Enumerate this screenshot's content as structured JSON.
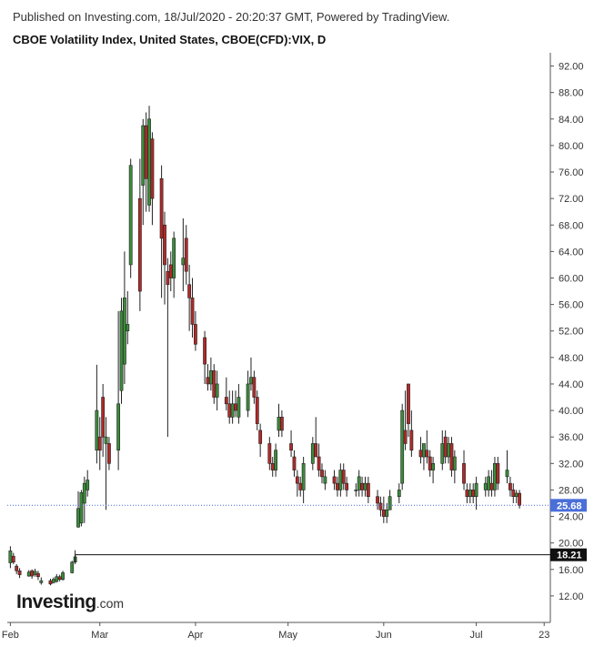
{
  "header": {
    "published": "Published on Investing.com, 18/Jul/2020 - 20:20:37 GMT, Powered by TradingView.",
    "title": "CBOE Volatility Index, United States, CBOE(CFD):VIX, D"
  },
  "logo": {
    "brand": "Investing",
    "domain": ".com"
  },
  "colors": {
    "up": "#3c8a3c",
    "down": "#b02a2a",
    "price_tag": "#4a6fd8",
    "black_tag": "#111111",
    "price_line": "#4a6fd8"
  },
  "chart_data": {
    "type": "candlestick",
    "y_ticks": [
      "92.00",
      "88.00",
      "84.00",
      "80.00",
      "76.00",
      "72.00",
      "68.00",
      "64.00",
      "60.00",
      "56.00",
      "52.00",
      "48.00",
      "44.00",
      "40.00",
      "36.00",
      "32.00",
      "28.00",
      "24.00",
      "20.00",
      "16.00",
      "12.00"
    ],
    "ylim": [
      8,
      94
    ],
    "x_labels": [
      {
        "label": "Feb",
        "day": 0
      },
      {
        "label": "Mar",
        "day": 29
      },
      {
        "label": "Apr",
        "day": 60
      },
      {
        "label": "May",
        "day": 90
      },
      {
        "label": "Jun",
        "day": 121
      },
      {
        "label": "Jul",
        "day": 151
      },
      {
        "label": "23",
        "day": 173
      }
    ],
    "current_price": {
      "label": "25.68",
      "value": 25.68
    },
    "marker_line": {
      "label": "18.21",
      "value": 18.21,
      "start_day": 21
    },
    "candles": [
      {
        "d": 0,
        "o": 17.0,
        "h": 19.5,
        "l": 16.2,
        "c": 18.8
      },
      {
        "d": 1,
        "o": 18.0,
        "h": 18.5,
        "l": 16.8,
        "c": 17.1
      },
      {
        "d": 2,
        "o": 16.5,
        "h": 16.8,
        "l": 15.3,
        "c": 15.8
      },
      {
        "d": 3,
        "o": 15.8,
        "h": 16.2,
        "l": 14.7,
        "c": 15.2
      },
      {
        "d": 6,
        "o": 15.0,
        "h": 15.9,
        "l": 14.9,
        "c": 15.6
      },
      {
        "d": 7,
        "o": 15.8,
        "h": 16.0,
        "l": 14.6,
        "c": 15.0
      },
      {
        "d": 8,
        "o": 15.2,
        "h": 16.1,
        "l": 14.9,
        "c": 15.7
      },
      {
        "d": 9,
        "o": 15.4,
        "h": 15.8,
        "l": 14.4,
        "c": 14.9
      },
      {
        "d": 10,
        "o": 14.0,
        "h": 14.8,
        "l": 13.7,
        "c": 14.3
      },
      {
        "d": 13,
        "o": 14.3,
        "h": 14.6,
        "l": 13.6,
        "c": 13.8
      },
      {
        "d": 14,
        "o": 14.0,
        "h": 14.8,
        "l": 13.9,
        "c": 14.5
      },
      {
        "d": 15,
        "o": 14.2,
        "h": 15.3,
        "l": 14.0,
        "c": 14.9
      },
      {
        "d": 16,
        "o": 14.9,
        "h": 15.2,
        "l": 14.2,
        "c": 14.5
      },
      {
        "d": 17,
        "o": 14.5,
        "h": 15.8,
        "l": 14.3,
        "c": 15.5
      },
      {
        "d": 20,
        "o": 15.5,
        "h": 17.3,
        "l": 15.4,
        "c": 17.1
      },
      {
        "d": 21,
        "o": 17.1,
        "h": 18.9,
        "l": 16.8,
        "c": 17.9
      },
      {
        "d": 22,
        "o": 22.4,
        "h": 27.8,
        "l": 22.3,
        "c": 25.2
      },
      {
        "d": 23,
        "o": 23.0,
        "h": 28.0,
        "l": 22.5,
        "c": 27.6
      },
      {
        "d": 24,
        "o": 26.0,
        "h": 30.0,
        "l": 23.0,
        "c": 29.0
      },
      {
        "d": 25,
        "o": 28.0,
        "h": 31.0,
        "l": 27.0,
        "c": 29.5
      },
      {
        "d": 28,
        "o": 34.0,
        "h": 46.9,
        "l": 32.0,
        "c": 40.0
      },
      {
        "d": 29,
        "o": 36.0,
        "h": 39.0,
        "l": 31.0,
        "c": 34.0
      },
      {
        "d": 30,
        "o": 42.0,
        "h": 44.0,
        "l": 33.0,
        "c": 36.0
      },
      {
        "d": 31,
        "o": 35.0,
        "h": 39.0,
        "l": 25.0,
        "c": 36.0
      },
      {
        "d": 32,
        "o": 35.0,
        "h": 36.0,
        "l": 31.0,
        "c": 32.0
      },
      {
        "d": 35,
        "o": 34.0,
        "h": 55.0,
        "l": 31.0,
        "c": 41.0
      },
      {
        "d": 36,
        "o": 43.0,
        "h": 57.0,
        "l": 41.0,
        "c": 55.0
      },
      {
        "d": 37,
        "o": 47.0,
        "h": 64.0,
        "l": 44.0,
        "c": 57.0
      },
      {
        "d": 38,
        "o": 52.0,
        "h": 58.0,
        "l": 50.0,
        "c": 53.0
      },
      {
        "d": 39,
        "o": 62.0,
        "h": 78.0,
        "l": 60.0,
        "c": 77.0
      },
      {
        "d": 42,
        "o": 72.0,
        "h": 78.0,
        "l": 55.0,
        "c": 58.0
      },
      {
        "d": 43,
        "o": 74.0,
        "h": 84.0,
        "l": 68.0,
        "c": 83.0
      },
      {
        "d": 44,
        "o": 83.0,
        "h": 85.0,
        "l": 70.0,
        "c": 75.0
      },
      {
        "d": 45,
        "o": 71.0,
        "h": 86.0,
        "l": 70.0,
        "c": 84.0
      },
      {
        "d": 46,
        "o": 81.0,
        "h": 82.0,
        "l": 68.0,
        "c": 72.0
      },
      {
        "d": 49,
        "o": 75.0,
        "h": 77.0,
        "l": 57.0,
        "c": 66.0
      },
      {
        "d": 50,
        "o": 68.0,
        "h": 70.0,
        "l": 56.0,
        "c": 62.0
      },
      {
        "d": 51,
        "o": 61.0,
        "h": 63.0,
        "l": 36.0,
        "c": 59.0
      },
      {
        "d": 52,
        "o": 62.0,
        "h": 64.0,
        "l": 58.0,
        "c": 60.0
      },
      {
        "d": 53,
        "o": 60.0,
        "h": 67.0,
        "l": 57.0,
        "c": 66.0
      },
      {
        "d": 56,
        "o": 62.0,
        "h": 69.0,
        "l": 58.0,
        "c": 63.0
      },
      {
        "d": 57,
        "o": 66.0,
        "h": 68.0,
        "l": 59.0,
        "c": 61.0
      },
      {
        "d": 58,
        "o": 59.0,
        "h": 62.0,
        "l": 52.0,
        "c": 57.0
      },
      {
        "d": 59,
        "o": 57.0,
        "h": 60.0,
        "l": 51.0,
        "c": 53.0
      },
      {
        "d": 60,
        "o": 53.0,
        "h": 55.0,
        "l": 49.0,
        "c": 50.0
      },
      {
        "d": 63,
        "o": 51.0,
        "h": 52.0,
        "l": 44.0,
        "c": 47.0
      },
      {
        "d": 64,
        "o": 45.0,
        "h": 47.0,
        "l": 43.0,
        "c": 44.0
      },
      {
        "d": 65,
        "o": 44.0,
        "h": 48.0,
        "l": 43.0,
        "c": 46.0
      },
      {
        "d": 66,
        "o": 46.0,
        "h": 47.0,
        "l": 41.0,
        "c": 42.0
      },
      {
        "d": 67,
        "o": 42.0,
        "h": 46.0,
        "l": 40.0,
        "c": 44.0
      },
      {
        "d": 70,
        "o": 42.0,
        "h": 45.0,
        "l": 40.0,
        "c": 41.0
      },
      {
        "d": 71,
        "o": 41.0,
        "h": 43.0,
        "l": 38.0,
        "c": 39.0
      },
      {
        "d": 72,
        "o": 39.0,
        "h": 43.0,
        "l": 38.0,
        "c": 41.0
      },
      {
        "d": 73,
        "o": 41.0,
        "h": 43.0,
        "l": 39.0,
        "c": 40.0
      },
      {
        "d": 74,
        "o": 39.0,
        "h": 44.0,
        "l": 38.0,
        "c": 42.0
      },
      {
        "d": 77,
        "o": 40.0,
        "h": 46.0,
        "l": 39.0,
        "c": 44.0
      },
      {
        "d": 78,
        "o": 44.0,
        "h": 48.0,
        "l": 43.0,
        "c": 45.0
      },
      {
        "d": 79,
        "o": 45.0,
        "h": 46.0,
        "l": 41.0,
        "c": 42.0
      },
      {
        "d": 80,
        "o": 42.0,
        "h": 43.0,
        "l": 37.0,
        "c": 38.0
      },
      {
        "d": 81,
        "o": 37.0,
        "h": 38.0,
        "l": 33.0,
        "c": 35.0
      },
      {
        "d": 84,
        "o": 35.0,
        "h": 36.0,
        "l": 31.0,
        "c": 32.0
      },
      {
        "d": 85,
        "o": 32.0,
        "h": 33.0,
        "l": 30.0,
        "c": 31.0
      },
      {
        "d": 86,
        "o": 31.0,
        "h": 35.0,
        "l": 30.0,
        "c": 34.0
      },
      {
        "d": 87,
        "o": 37.0,
        "h": 41.0,
        "l": 36.0,
        "c": 39.0
      },
      {
        "d": 88,
        "o": 39.0,
        "h": 40.0,
        "l": 36.0,
        "c": 37.0
      },
      {
        "d": 91,
        "o": 35.0,
        "h": 37.0,
        "l": 33.0,
        "c": 34.0
      },
      {
        "d": 92,
        "o": 33.0,
        "h": 34.0,
        "l": 30.0,
        "c": 31.0
      },
      {
        "d": 93,
        "o": 30.0,
        "h": 31.0,
        "l": 27.0,
        "c": 29.0
      },
      {
        "d": 94,
        "o": 29.0,
        "h": 30.0,
        "l": 27.0,
        "c": 28.0
      },
      {
        "d": 95,
        "o": 28.0,
        "h": 33.0,
        "l": 26.0,
        "c": 32.0
      },
      {
        "d": 98,
        "o": 32.0,
        "h": 36.0,
        "l": 31.0,
        "c": 35.0
      },
      {
        "d": 99,
        "o": 35.0,
        "h": 39.0,
        "l": 33.0,
        "c": 33.0
      },
      {
        "d": 100,
        "o": 33.0,
        "h": 35.0,
        "l": 30.0,
        "c": 31.0
      },
      {
        "d": 101,
        "o": 31.0,
        "h": 32.0,
        "l": 29.0,
        "c": 30.0
      },
      {
        "d": 102,
        "o": 29.0,
        "h": 31.0,
        "l": 28.0,
        "c": 30.0
      },
      {
        "d": 105,
        "o": 30.0,
        "h": 31.0,
        "l": 28.0,
        "c": 29.0
      },
      {
        "d": 106,
        "o": 29.0,
        "h": 30.0,
        "l": 27.0,
        "c": 28.0
      },
      {
        "d": 107,
        "o": 28.0,
        "h": 32.0,
        "l": 27.0,
        "c": 31.0
      },
      {
        "d": 108,
        "o": 31.0,
        "h": 32.0,
        "l": 28.0,
        "c": 29.0
      },
      {
        "d": 109,
        "o": 29.0,
        "h": 30.0,
        "l": 27.0,
        "c": 28.0
      },
      {
        "d": 112,
        "o": 28.0,
        "h": 29.0,
        "l": 27.0,
        "c": 28.0
      },
      {
        "d": 113,
        "o": 28.0,
        "h": 31.0,
        "l": 27.0,
        "c": 30.0
      },
      {
        "d": 114,
        "o": 29.0,
        "h": 30.0,
        "l": 27.0,
        "c": 28.0
      },
      {
        "d": 115,
        "o": 28.0,
        "h": 30.0,
        "l": 27.0,
        "c": 29.0
      },
      {
        "d": 116,
        "o": 29.0,
        "h": 30.0,
        "l": 26.0,
        "c": 27.0
      },
      {
        "d": 119,
        "o": 27.0,
        "h": 28.0,
        "l": 25.0,
        "c": 26.0
      },
      {
        "d": 120,
        "o": 26.0,
        "h": 27.0,
        "l": 24.0,
        "c": 25.0
      },
      {
        "d": 121,
        "o": 25.0,
        "h": 27.0,
        "l": 23.0,
        "c": 24.0
      },
      {
        "d": 122,
        "o": 24.0,
        "h": 26.0,
        "l": 23.0,
        "c": 25.0
      },
      {
        "d": 123,
        "o": 25.0,
        "h": 28.0,
        "l": 25.0,
        "c": 27.0
      },
      {
        "d": 126,
        "o": 27.0,
        "h": 29.0,
        "l": 26.0,
        "c": 28.0
      },
      {
        "d": 127,
        "o": 29.0,
        "h": 41.0,
        "l": 28.0,
        "c": 40.0
      },
      {
        "d": 128,
        "o": 37.0,
        "h": 43.0,
        "l": 34.0,
        "c": 35.0
      },
      {
        "d": 129,
        "o": 44.0,
        "h": 44.0,
        "l": 36.0,
        "c": 38.0
      },
      {
        "d": 130,
        "o": 37.0,
        "h": 40.0,
        "l": 33.0,
        "c": 34.0
      },
      {
        "d": 133,
        "o": 34.0,
        "h": 36.0,
        "l": 32.0,
        "c": 33.0
      },
      {
        "d": 134,
        "o": 33.0,
        "h": 35.0,
        "l": 31.0,
        "c": 35.0
      },
      {
        "d": 135,
        "o": 34.0,
        "h": 37.0,
        "l": 32.0,
        "c": 33.0
      },
      {
        "d": 136,
        "o": 33.0,
        "h": 34.0,
        "l": 30.0,
        "c": 31.0
      },
      {
        "d": 137,
        "o": 31.0,
        "h": 33.0,
        "l": 29.0,
        "c": 32.0
      },
      {
        "d": 140,
        "o": 32.0,
        "h": 37.0,
        "l": 31.0,
        "c": 35.0
      },
      {
        "d": 141,
        "o": 36.0,
        "h": 37.0,
        "l": 32.0,
        "c": 33.0
      },
      {
        "d": 142,
        "o": 33.0,
        "h": 36.0,
        "l": 32.0,
        "c": 35.0
      },
      {
        "d": 143,
        "o": 35.0,
        "h": 36.0,
        "l": 30.0,
        "c": 31.0
      },
      {
        "d": 144,
        "o": 31.0,
        "h": 34.0,
        "l": 29.0,
        "c": 33.0
      },
      {
        "d": 147,
        "o": 32.0,
        "h": 34.0,
        "l": 28.0,
        "c": 29.0
      },
      {
        "d": 148,
        "o": 28.0,
        "h": 29.0,
        "l": 26.0,
        "c": 27.0
      },
      {
        "d": 149,
        "o": 27.0,
        "h": 29.0,
        "l": 26.0,
        "c": 28.0
      },
      {
        "d": 150,
        "o": 28.0,
        "h": 29.0,
        "l": 26.0,
        "c": 27.0
      },
      {
        "d": 151,
        "o": 27.0,
        "h": 30.0,
        "l": 25.0,
        "c": 29.0
      },
      {
        "d": 154,
        "o": 28.0,
        "h": 30.0,
        "l": 27.0,
        "c": 29.0
      },
      {
        "d": 155,
        "o": 28.0,
        "h": 31.0,
        "l": 27.0,
        "c": 30.0
      },
      {
        "d": 156,
        "o": 29.0,
        "h": 31.0,
        "l": 27.0,
        "c": 28.0
      },
      {
        "d": 157,
        "o": 28.0,
        "h": 33.0,
        "l": 27.0,
        "c": 32.0
      },
      {
        "d": 158,
        "o": 32.0,
        "h": 33.0,
        "l": 28.0,
        "c": 29.0
      },
      {
        "d": 161,
        "o": 30.0,
        "h": 34.0,
        "l": 29.0,
        "c": 31.0
      },
      {
        "d": 162,
        "o": 29.0,
        "h": 30.0,
        "l": 27.0,
        "c": 28.0
      },
      {
        "d": 163,
        "o": 28.0,
        "h": 29.0,
        "l": 26.0,
        "c": 27.0
      },
      {
        "d": 164,
        "o": 27.0,
        "h": 28.0,
        "l": 26.0,
        "c": 27.5
      },
      {
        "d": 165,
        "o": 27.5,
        "h": 28.0,
        "l": 25.2,
        "c": 25.68
      }
    ]
  }
}
